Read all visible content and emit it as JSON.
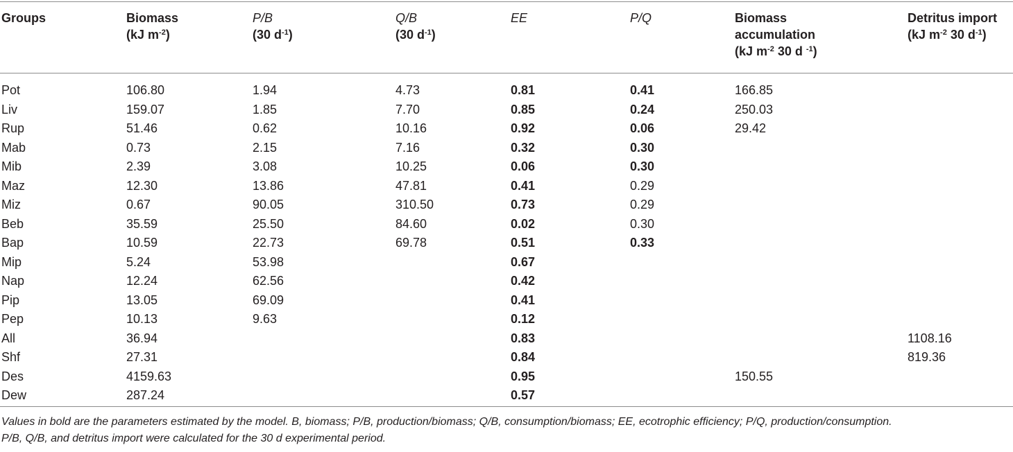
{
  "header": {
    "groups": "Groups",
    "biomass_l1": "Biomass",
    "biomass_l2a": "(kJ m",
    "biomass_sup": "-2",
    "biomass_l2b": ")",
    "pb_l1": "P/B",
    "pb_l2a": "(30 d",
    "pb_sup": "-1",
    "pb_l2b": ")",
    "qb_l1": "Q/B",
    "qb_l2a": "(30 d",
    "qb_sup": "-1",
    "qb_l2b": ")",
    "ee": "EE",
    "pq": "P/Q",
    "ba_l1": "Biomass",
    "ba_l2": "accumulation",
    "ba_l3a": "(kJ m",
    "ba_sup1": "-2",
    "ba_l3b": " 30 d ",
    "ba_sup2": "-1",
    "ba_l3c": ")",
    "di_l1": "Detritus import",
    "di_l2a": "(kJ m",
    "di_sup1": "-2",
    "di_l2b": " 30 d",
    "di_sup2": "-1",
    "di_l2c": ")"
  },
  "rows": [
    [
      "Pot",
      "106.80",
      "1.94",
      "4.73",
      "0.81",
      "0.41",
      "166.85",
      ""
    ],
    [
      "Liv",
      "159.07",
      "1.85",
      "7.70",
      "0.85",
      "0.24",
      "250.03",
      ""
    ],
    [
      "Rup",
      "51.46",
      "0.62",
      "10.16",
      "0.92",
      "0.06",
      "29.42",
      ""
    ],
    [
      "Mab",
      "0.73",
      "2.15",
      "7.16",
      "0.32",
      "0.30",
      "",
      ""
    ],
    [
      "Mib",
      "2.39",
      "3.08",
      "10.25",
      "0.06",
      "0.30",
      "",
      ""
    ],
    [
      "Maz",
      "12.30",
      "13.86",
      "47.81",
      "0.41",
      "0.29",
      "",
      ""
    ],
    [
      "Miz",
      "0.67",
      "90.05",
      "310.50",
      "0.73",
      "0.29",
      "",
      ""
    ],
    [
      "Beb",
      "35.59",
      "25.50",
      "84.60",
      "0.02",
      "0.30",
      "",
      ""
    ],
    [
      "Bap",
      "10.59",
      "22.73",
      "69.78",
      "0.51",
      "0.33",
      "",
      ""
    ],
    [
      "Mip",
      "5.24",
      "53.98",
      "",
      "0.67",
      "",
      "",
      ""
    ],
    [
      "Nap",
      "12.24",
      "62.56",
      "",
      "0.42",
      "",
      "",
      ""
    ],
    [
      "Pip",
      "13.05",
      "69.09",
      "",
      "0.41",
      "",
      "",
      ""
    ],
    [
      "Pep",
      "10.13",
      "9.63",
      "",
      "0.12",
      "",
      "",
      ""
    ],
    [
      "All",
      "36.94",
      "",
      "",
      "0.83",
      "",
      "",
      "1108.16"
    ],
    [
      "Shf",
      "27.31",
      "",
      "",
      "0.84",
      "",
      "",
      "819.36"
    ],
    [
      "Des",
      "4159.63",
      "",
      "",
      "0.95",
      "",
      "150.55",
      ""
    ],
    [
      "Dew",
      "287.24",
      "",
      "",
      "0.57",
      "",
      "",
      ""
    ]
  ],
  "bold_pq_rows": [
    0,
    1,
    2,
    3,
    4,
    8
  ],
  "footnote": {
    "line1": "Values in bold are the parameters estimated by the model. B, biomass; P/B, production/biomass; Q/B, consumption/biomass; EE, ecotrophic efficiency; P/Q, production/consumption.",
    "line2": "P/B, Q/B, and detritus import were calculated for the 30 d experimental period."
  }
}
